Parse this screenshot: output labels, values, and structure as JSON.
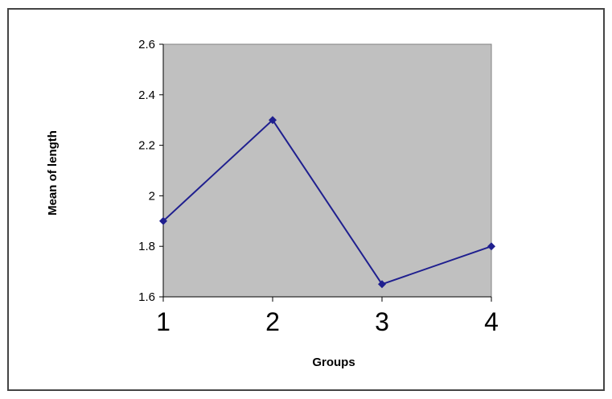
{
  "chart_data": {
    "type": "line",
    "title": "",
    "xlabel": "Groups",
    "ylabel": "Mean of length",
    "x": [
      1,
      2,
      3,
      4
    ],
    "x_tick_labels": [
      "1",
      "2",
      "3",
      "4"
    ],
    "y_tick_labels": [
      "1.6",
      "1.8",
      "2",
      "2.2",
      "2.4",
      "2.6"
    ],
    "y_ticks": [
      1.6,
      1.8,
      2.0,
      2.2,
      2.4,
      2.6
    ],
    "ylim": [
      1.6,
      2.6
    ],
    "grid": false,
    "legend": "none",
    "series": [
      {
        "values": [
          1.9,
          2.3,
          1.65,
          1.8
        ],
        "color": "#1f1f8f",
        "marker": "diamond"
      }
    ],
    "plot_background": "#c0c0c0"
  }
}
